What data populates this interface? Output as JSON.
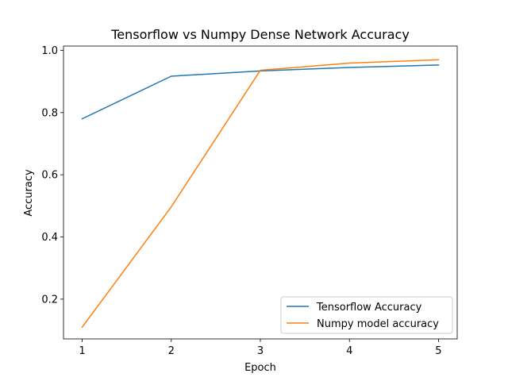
{
  "chart_data": {
    "type": "line",
    "title": "Tensorflow vs Numpy Dense Network Accuracy",
    "xlabel": "Epoch",
    "ylabel": "Accuracy",
    "x": [
      1,
      2,
      3,
      4,
      5
    ],
    "xlim": [
      0.79,
      5.21
    ],
    "ylim": [
      0.072,
      1.014
    ],
    "xticks": [
      1,
      2,
      3,
      4,
      5
    ],
    "yticks": [
      0.2,
      0.4,
      0.6,
      0.8,
      1.0
    ],
    "ytick_labels": [
      "0.2",
      "0.4",
      "0.6",
      "0.8",
      "1.0"
    ],
    "grid": false,
    "legend_position": "lower-right",
    "series": [
      {
        "name": "Tensorflow Accuracy",
        "color": "#1f77b4",
        "values": [
          0.78,
          0.917,
          0.934,
          0.945,
          0.953
        ]
      },
      {
        "name": "Numpy model accuracy",
        "color": "#ff7f0e",
        "values": [
          0.11,
          0.497,
          0.936,
          0.959,
          0.97
        ]
      }
    ]
  }
}
